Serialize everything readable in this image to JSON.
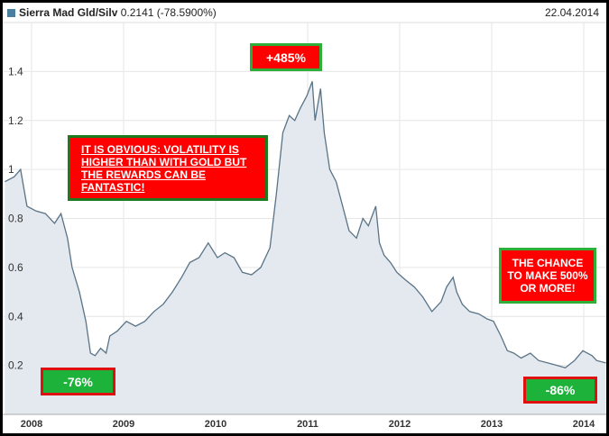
{
  "header": {
    "name": "Sierra Mad Gld/Silv",
    "value": "0.2141",
    "change": "(-78.5900%)",
    "date": "22.04.2014"
  },
  "annotations": {
    "peak": "+485%",
    "obvious": "IT IS OBVIOUS: VOLATILITY IS HIGHER THAN WITH GOLD BUT THE REWARDS CAN BE FANTASTIC!",
    "chance": "THE CHANCE TO MAKE 500% OR MORE!",
    "drop2008": "-76%",
    "drop2014": "-86%"
  },
  "colors": {
    "line": "#5a7386",
    "area": "#e3e9ef",
    "grid": "#e6e6e6"
  },
  "chart_data": {
    "type": "area",
    "title": "Sierra Mad Gld/Silv",
    "xlabel": "",
    "ylabel": "",
    "xlim": [
      2007.7,
      2014.3
    ],
    "ylim": [
      0,
      1.6
    ],
    "grid": true,
    "x_ticks": [
      {
        "v": 2008,
        "label": "2008"
      },
      {
        "v": 2009,
        "label": "2009"
      },
      {
        "v": 2010,
        "label": "2010"
      },
      {
        "v": 2011,
        "label": "2011"
      },
      {
        "v": 2012,
        "label": "2012"
      },
      {
        "v": 2013,
        "label": "2013"
      },
      {
        "v": 2014,
        "label": "2014"
      }
    ],
    "y_ticks": [
      {
        "v": 0.2,
        "label": "0.2"
      },
      {
        "v": 0.4,
        "label": "0.4"
      },
      {
        "v": 0.6,
        "label": "0.6"
      },
      {
        "v": 0.8,
        "label": "0.8"
      },
      {
        "v": 1.0,
        "label": "1"
      },
      {
        "v": 1.2,
        "label": "1.2"
      },
      {
        "v": 1.4,
        "label": "1.4"
      }
    ],
    "x": [
      2007.71,
      2007.81,
      2007.88,
      2007.95,
      2008.05,
      2008.15,
      2008.25,
      2008.32,
      2008.39,
      2008.44,
      2008.52,
      2008.59,
      2008.64,
      2008.69,
      2008.75,
      2008.81,
      2008.85,
      2008.93,
      2009.03,
      2009.13,
      2009.23,
      2009.33,
      2009.43,
      2009.53,
      2009.63,
      2009.72,
      2009.82,
      2009.92,
      2010.02,
      2010.1,
      2010.2,
      2010.29,
      2010.39,
      2010.49,
      2010.59,
      2010.66,
      2010.73,
      2010.8,
      2010.86,
      2010.92,
      2010.99,
      2011.05,
      2011.08,
      2011.14,
      2011.18,
      2011.24,
      2011.31,
      2011.38,
      2011.45,
      2011.53,
      2011.6,
      2011.66,
      2011.74,
      2011.78,
      2011.83,
      2011.9,
      2011.97,
      2012.06,
      2012.16,
      2012.25,
      2012.35,
      2012.45,
      2012.51,
      2012.58,
      2012.62,
      2012.68,
      2012.76,
      2012.86,
      2012.95,
      2013.02,
      2013.1,
      2013.17,
      2013.24,
      2013.32,
      2013.42,
      2013.51,
      2013.61,
      2013.71,
      2013.8,
      2013.9,
      2013.99,
      2014.09,
      2014.14,
      2014.24
    ],
    "values": [
      0.95,
      0.97,
      1.0,
      0.85,
      0.83,
      0.82,
      0.78,
      0.82,
      0.72,
      0.6,
      0.5,
      0.38,
      0.25,
      0.24,
      0.27,
      0.25,
      0.32,
      0.34,
      0.38,
      0.36,
      0.38,
      0.42,
      0.45,
      0.5,
      0.56,
      0.62,
      0.64,
      0.7,
      0.64,
      0.66,
      0.64,
      0.58,
      0.57,
      0.6,
      0.68,
      0.9,
      1.15,
      1.22,
      1.2,
      1.25,
      1.3,
      1.36,
      1.2,
      1.33,
      1.15,
      1.0,
      0.95,
      0.85,
      0.75,
      0.72,
      0.8,
      0.77,
      0.85,
      0.7,
      0.65,
      0.62,
      0.58,
      0.55,
      0.52,
      0.48,
      0.42,
      0.46,
      0.52,
      0.56,
      0.5,
      0.45,
      0.42,
      0.41,
      0.39,
      0.38,
      0.32,
      0.26,
      0.25,
      0.23,
      0.25,
      0.22,
      0.21,
      0.2,
      0.19,
      0.22,
      0.26,
      0.24,
      0.22,
      0.21
    ]
  }
}
